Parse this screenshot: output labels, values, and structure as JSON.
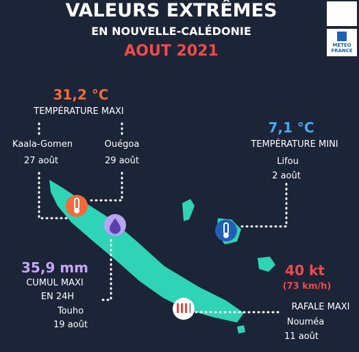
{
  "header": {
    "title": "VALEURS EXTRÊMES",
    "subtitle": "EN NOUVELLE-CALÉDONIE",
    "period": "AOUT 2021"
  },
  "logo": {
    "line1": "METEO",
    "line2": "FRANCE"
  },
  "tmax": {
    "value": "31,2 °C",
    "label": "TEMPÉRATURE MAXI",
    "places": [
      {
        "name": "Kaala-Gomen",
        "date": "27 août"
      },
      {
        "name": "Ouégoa",
        "date": "29 août"
      }
    ]
  },
  "tmin": {
    "value": "7,1 °C",
    "label": "TEMPÉRATURE MINI",
    "place": {
      "name": "Lifou",
      "date": "2 août"
    }
  },
  "rain": {
    "value": "35,9 mm",
    "label": [
      "CUMUL MAXI",
      "EN 24H"
    ],
    "place": {
      "name": "Touho",
      "date": "19 août"
    }
  },
  "wind": {
    "value": "40 kt",
    "sub": "(73 km/h)",
    "label": "RAFALE MAXI",
    "place": {
      "name": "Nouméa",
      "date": "11 août"
    }
  }
}
